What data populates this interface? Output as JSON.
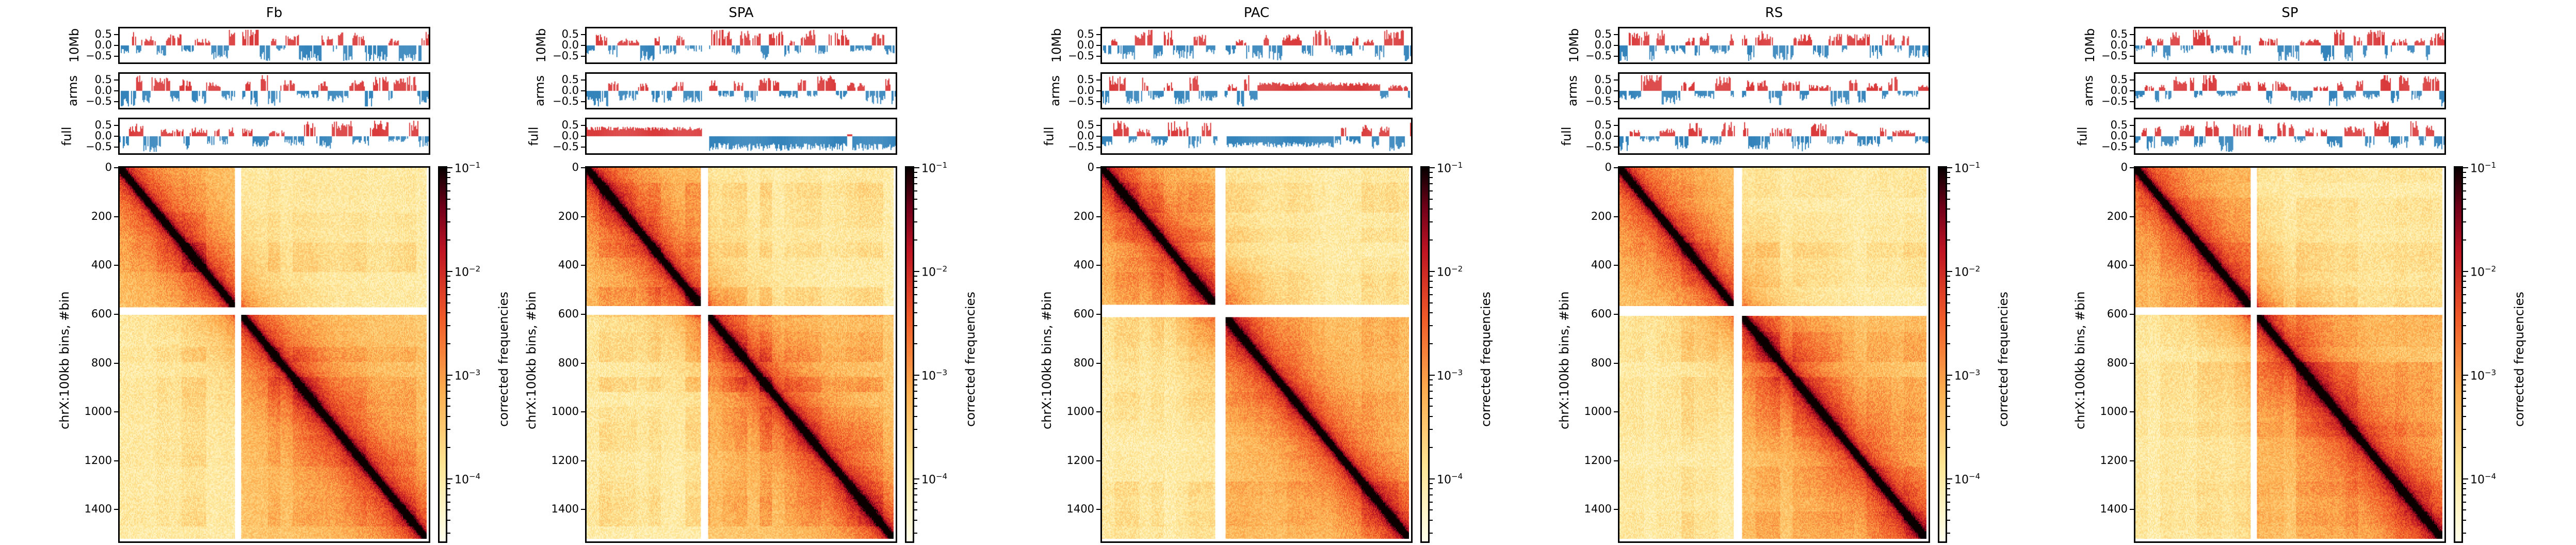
{
  "chart_data": [
    {
      "type": "heatmap",
      "title": "Fb",
      "seed": 11,
      "tracks": [
        {
          "label": "10Mb"
        },
        {
          "label": "arms"
        },
        {
          "label": "full"
        }
      ],
      "track_pattern": "alternating",
      "gaps": [
        570,
        600
      ]
    },
    {
      "type": "heatmap",
      "title": "SPA",
      "seed": 23,
      "tracks": [
        {
          "label": "10Mb"
        },
        {
          "label": "arms"
        },
        {
          "label": "full"
        }
      ],
      "track_pattern": "split",
      "gaps": [
        565,
        600
      ]
    },
    {
      "type": "heatmap",
      "title": "PAC",
      "seed": 37,
      "tracks": [
        {
          "label": "10Mb"
        },
        {
          "label": "arms"
        },
        {
          "label": "full"
        }
      ],
      "track_pattern": "broad",
      "gaps": [
        560,
        610
      ]
    },
    {
      "type": "heatmap",
      "title": "RS",
      "seed": 41,
      "tracks": [
        {
          "label": "10Mb"
        },
        {
          "label": "arms"
        },
        {
          "label": "full"
        }
      ],
      "track_pattern": "alternating",
      "gaps": [
        565,
        605
      ]
    },
    {
      "type": "heatmap",
      "title": "SP",
      "seed": 53,
      "tracks": [
        {
          "label": "10Mb"
        },
        {
          "label": "arms"
        },
        {
          "label": "full"
        }
      ],
      "track_pattern": "alternating",
      "gaps": [
        570,
        600
      ]
    }
  ],
  "shared": {
    "ylabel": "chrX:100kb bins, #bin",
    "yticks": [
      0,
      200,
      400,
      600,
      800,
      1000,
      1200,
      1400
    ],
    "ymax": 1530,
    "track_yticks": [
      "0.5",
      "0.0",
      "−0.5"
    ],
    "track_ylim": [
      -0.8,
      0.8
    ],
    "colorbar_label": "corrected frequencies",
    "colorbar_ticks": [
      {
        "base": "10",
        "exp": "−1",
        "value": 0.1
      },
      {
        "base": "10",
        "exp": "−2",
        "value": 0.01
      },
      {
        "base": "10",
        "exp": "−3",
        "value": 0.001
      },
      {
        "base": "10",
        "exp": "−4",
        "value": 0.0001
      }
    ],
    "colorbar_range": [
      2.5e-05,
      0.1
    ],
    "colormap": "YlOrRd-afmhot",
    "pos_color": "#d62728",
    "neg_color": "#1f77b4"
  }
}
